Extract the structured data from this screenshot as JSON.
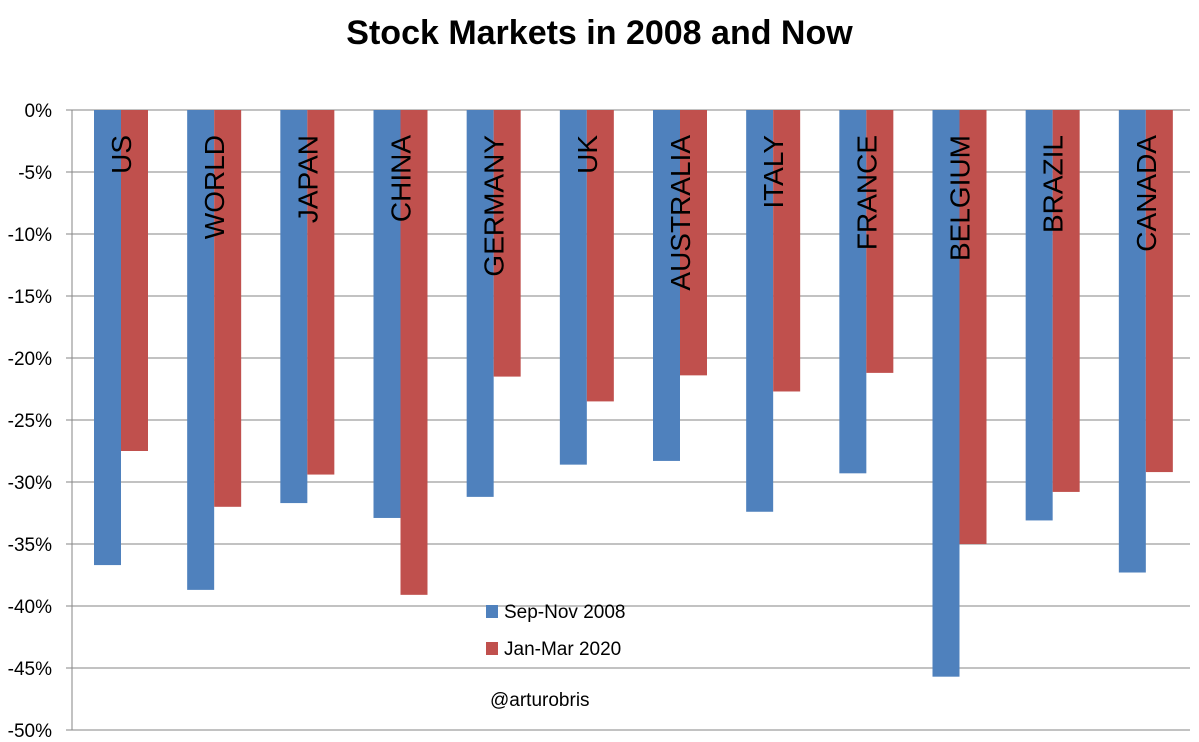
{
  "chart_data": {
    "type": "bar",
    "title": "Stock Markets in 2008 and Now",
    "xlabel": "",
    "ylabel": "",
    "ylim": [
      -50,
      0
    ],
    "y_ticks": [
      "0%",
      "-5%",
      "-10%",
      "-15%",
      "-20%",
      "-25%",
      "-30%",
      "-35%",
      "-40%",
      "-45%",
      "-50%"
    ],
    "grid": true,
    "categories": [
      "US",
      "WORLD",
      "JAPAN",
      "CHINA",
      "GERMANY",
      "UK",
      "AUSTRALIA",
      "ITALY",
      "FRANCE",
      "BELGIUM",
      "BRAZIL",
      "CANADA"
    ],
    "series": [
      {
        "name": "Sep-Nov 2008",
        "color": "#4f81bd",
        "values": [
          -36.7,
          -38.7,
          -31.7,
          -32.9,
          -31.2,
          -28.6,
          -28.3,
          -32.4,
          -29.3,
          -45.7,
          -33.1,
          -37.3
        ]
      },
      {
        "name": "Jan-Mar 2020",
        "color": "#c0504d",
        "values": [
          -27.5,
          -32.0,
          -29.4,
          -39.1,
          -21.5,
          -23.5,
          -21.4,
          -22.7,
          -21.2,
          -35.0,
          -30.8,
          -29.2
        ]
      }
    ],
    "legend_position": "inside-bottom-center",
    "annotations": [
      "@arturobris"
    ]
  }
}
